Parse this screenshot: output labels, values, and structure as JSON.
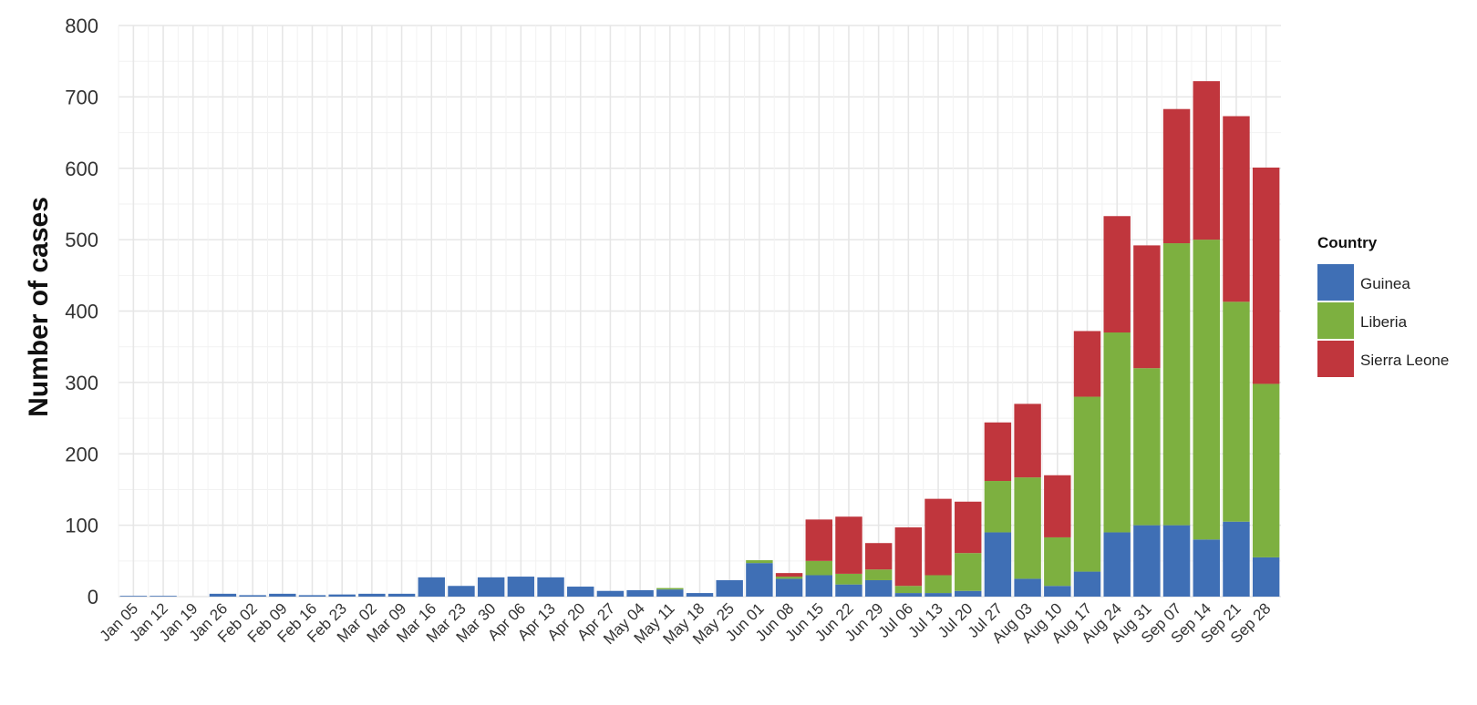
{
  "chart_data": {
    "type": "bar",
    "stacked": true,
    "title": "",
    "xlabel": "",
    "ylabel": "Number of cases",
    "ylim": [
      0,
      800
    ],
    "yticks": [
      0,
      100,
      200,
      300,
      400,
      500,
      600,
      700,
      800
    ],
    "grid": true,
    "legend": {
      "title": "Country",
      "placement": "right"
    },
    "categories": [
      "Jan 05",
      "Jan 12",
      "Jan 19",
      "Jan 26",
      "Feb 02",
      "Feb 09",
      "Feb 16",
      "Feb 23",
      "Mar 02",
      "Mar 09",
      "Mar 16",
      "Mar 23",
      "Mar 30",
      "Apr 06",
      "Apr 13",
      "Apr 20",
      "Apr 27",
      "May 04",
      "May 11",
      "May 18",
      "May 25",
      "Jun 01",
      "Jun 08",
      "Jun 15",
      "Jun 22",
      "Jun 29",
      "Jul 06",
      "Jul 13",
      "Jul 20",
      "Jul 27",
      "Aug 03",
      "Aug 10",
      "Aug 17",
      "Aug 24",
      "Aug 31",
      "Sep 07",
      "Sep 14",
      "Sep 21",
      "Sep 28"
    ],
    "series": [
      {
        "name": "Guinea",
        "color": "#3f6fb5",
        "values": [
          1,
          1,
          0,
          4,
          2,
          4,
          2,
          3,
          4,
          4,
          27,
          15,
          27,
          28,
          27,
          14,
          8,
          9,
          10,
          5,
          23,
          47,
          25,
          30,
          17,
          23,
          5,
          5,
          8,
          90,
          25,
          15,
          35,
          90,
          100,
          100,
          80,
          105,
          55
        ]
      },
      {
        "name": "Liberia",
        "color": "#7db040",
        "values": [
          0,
          0,
          0,
          0,
          0,
          0,
          0,
          0,
          0,
          0,
          0,
          0,
          0,
          0,
          0,
          0,
          0,
          0,
          2,
          0,
          0,
          4,
          3,
          20,
          15,
          15,
          10,
          25,
          53,
          72,
          142,
          68,
          245,
          280,
          220,
          395,
          420,
          308,
          243
        ]
      },
      {
        "name": "Sierra Leone",
        "color": "#c0363d",
        "values": [
          0,
          0,
          0,
          0,
          0,
          0,
          0,
          0,
          0,
          0,
          0,
          0,
          0,
          0,
          0,
          0,
          0,
          0,
          0,
          0,
          0,
          0,
          5,
          58,
          80,
          37,
          82,
          107,
          72,
          82,
          103,
          87,
          92,
          163,
          172,
          188,
          222,
          260,
          303
        ]
      }
    ]
  }
}
